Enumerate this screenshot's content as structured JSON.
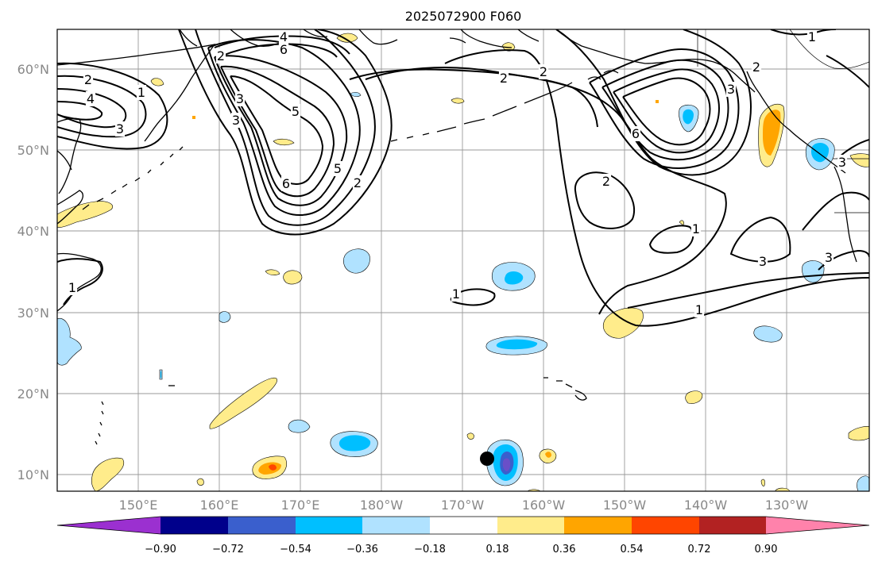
{
  "title": "2025072900 F060",
  "map": {
    "lat_labels": [
      "60°N",
      "50°N",
      "40°N",
      "30°N",
      "20°N",
      "10°N"
    ],
    "lon_labels": [
      "150°E",
      "160°E",
      "170°E",
      "180°W",
      "170°W",
      "160°W",
      "150°W",
      "140°W",
      "130°W"
    ],
    "marker": {
      "lon": -166,
      "lat": 12,
      "color": "#000000"
    }
  },
  "colorbar": {
    "colors": [
      "#9b30d0",
      "#00008b",
      "#3a5fcd",
      "#00bfff",
      "#b0e2ff",
      "#ffffff",
      "#ffec8b",
      "#ffa500",
      "#ff4500",
      "#b22222",
      "#ff82ab"
    ],
    "tick_labels": [
      "−0.90",
      "−0.72",
      "−0.54",
      "−0.36",
      "−0.18",
      "0.18",
      "0.36",
      "0.54",
      "0.72",
      "0.90"
    ]
  },
  "contour_labels": [
    "4",
    "6",
    "2",
    "4",
    "3",
    "1",
    "3",
    "3",
    "5",
    "6",
    "5",
    "2",
    "2",
    "1",
    "1",
    "2",
    "6",
    "3",
    "2",
    "1",
    "3",
    "3",
    "1",
    "2",
    "1",
    "3",
    "2"
  ],
  "colors": {
    "negative": "#00bfff",
    "positive": "#ffa500",
    "contour": "#000000",
    "grid": "#999999"
  }
}
